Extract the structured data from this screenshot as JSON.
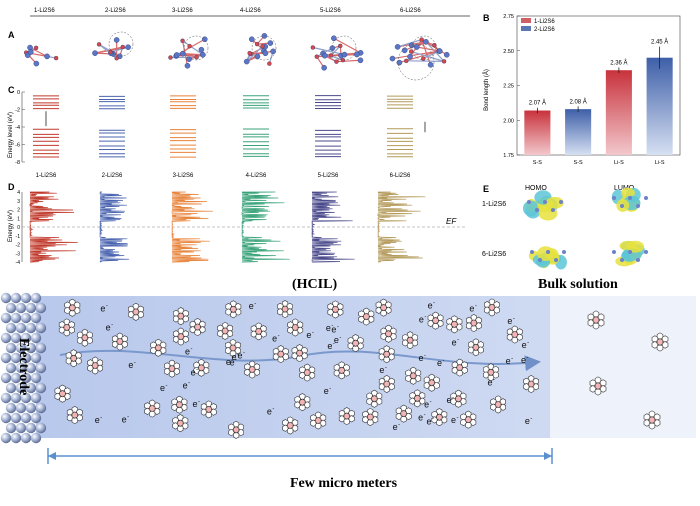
{
  "panelA": {
    "label": "A",
    "structures": [
      "1-Li2S6",
      "2-Li2S6",
      "3-Li2S6",
      "4-Li2S6",
      "5-Li2S6",
      "6-Li2S6"
    ]
  },
  "panelB": {
    "label": "B",
    "ylabel": "Bond length (Å)",
    "chart_data": {
      "type": "bar",
      "categories": [
        "S-S",
        "S-S",
        "Li-S",
        "Li-S"
      ],
      "values": [
        2.07,
        2.08,
        2.36,
        2.45
      ],
      "value_labels": [
        "2.07 Å",
        "2.08 Å",
        "2.36 Å",
        "2.45 Å"
      ],
      "ylim": [
        1.75,
        2.75
      ],
      "yticks": [
        "1.75",
        "2.00",
        "2.25",
        "2.50",
        "2.75"
      ],
      "series": [
        {
          "name": "1-Li2S6"
        },
        {
          "name": "2-Li2S6"
        }
      ],
      "colors": [
        "#d05f66",
        "#5a78b4"
      ]
    }
  },
  "panelC": {
    "label": "C",
    "ylabel": "Energy level (eV)",
    "yticks": [
      "0",
      "-2",
      "-4",
      "-6",
      "-8"
    ],
    "labels": [
      "1-Li2S6",
      "2-Li2S6",
      "3-Li2S6",
      "4-Li2S6",
      "5-Li2S6",
      "6-Li2S6"
    ],
    "colors": [
      "#c0392b",
      "#4a64b0",
      "#e8833a",
      "#3aa37a",
      "#4a4a8c",
      "#b49a5a"
    ]
  },
  "panelD": {
    "label": "D",
    "ylabel": "Energy (eV)",
    "yticks": [
      "4",
      "3",
      "2",
      "1",
      "0",
      "-1",
      "-2",
      "-3",
      "-4"
    ],
    "ef": "EF"
  },
  "panelE": {
    "label": "E",
    "homo": "HOMO",
    "lumo": "LUMO",
    "rows": [
      "1-Li2S6",
      "6-Li2S6"
    ]
  },
  "bottom": {
    "hcil": "(HCIL)",
    "bulk": "Bulk solution",
    "electrode": "Electrode",
    "electron": "e",
    "electron_sup": "-",
    "scale": "Few micro meters"
  }
}
